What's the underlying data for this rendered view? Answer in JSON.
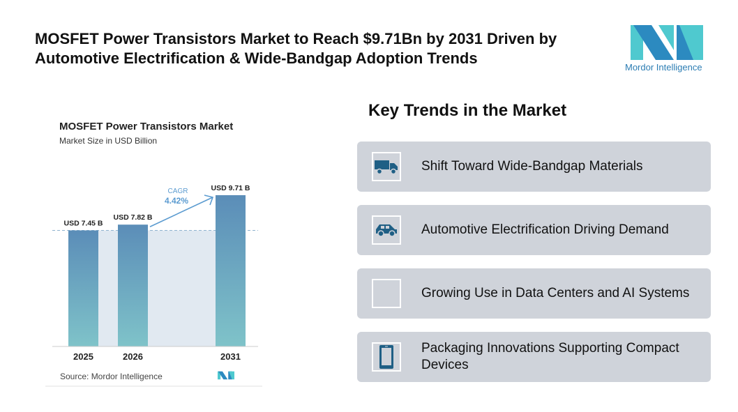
{
  "header": {
    "title": "MOSFET Power Transistors Market to Reach $9.71Bn by 2031 Driven by Automotive Electrification & Wide-Bandgap Adoption Trends",
    "logo_text": "Mordor Intelligence"
  },
  "chart_data": {
    "type": "bar",
    "title": "MOSFET Power Transistors Market",
    "subtitle": "Market Size in USD Billion",
    "categories": [
      "2025",
      "2026",
      "2031"
    ],
    "values": [
      7.45,
      7.82,
      9.71
    ],
    "data_labels": [
      "USD 7.45 B",
      "USD 7.82 B",
      "USD 9.71 B"
    ],
    "cagr_label": "CAGR",
    "cagr_value": "4.42%",
    "source": "Source: Mordor Intelligence",
    "colors": {
      "bar_top": "#5b8db8",
      "bar_bottom": "#7fc3c9",
      "band": "#e1e9f1",
      "accent": "#5b9bd0"
    }
  },
  "trends": {
    "title": "Key Trends in the Market",
    "items": [
      {
        "label": "Shift Toward Wide-Bandgap Materials",
        "icon": "truck-icon"
      },
      {
        "label": "Automotive Electrification Driving Demand",
        "icon": "car-icon"
      },
      {
        "label": "Growing Use in Data Centers and AI Systems",
        "icon": "head-gears-icon"
      },
      {
        "label": "Packaging Innovations Supporting Compact Devices",
        "icon": "smartphone-icon"
      }
    ],
    "icon_color": "#1f5f85",
    "card_color": "#cfd3da"
  }
}
